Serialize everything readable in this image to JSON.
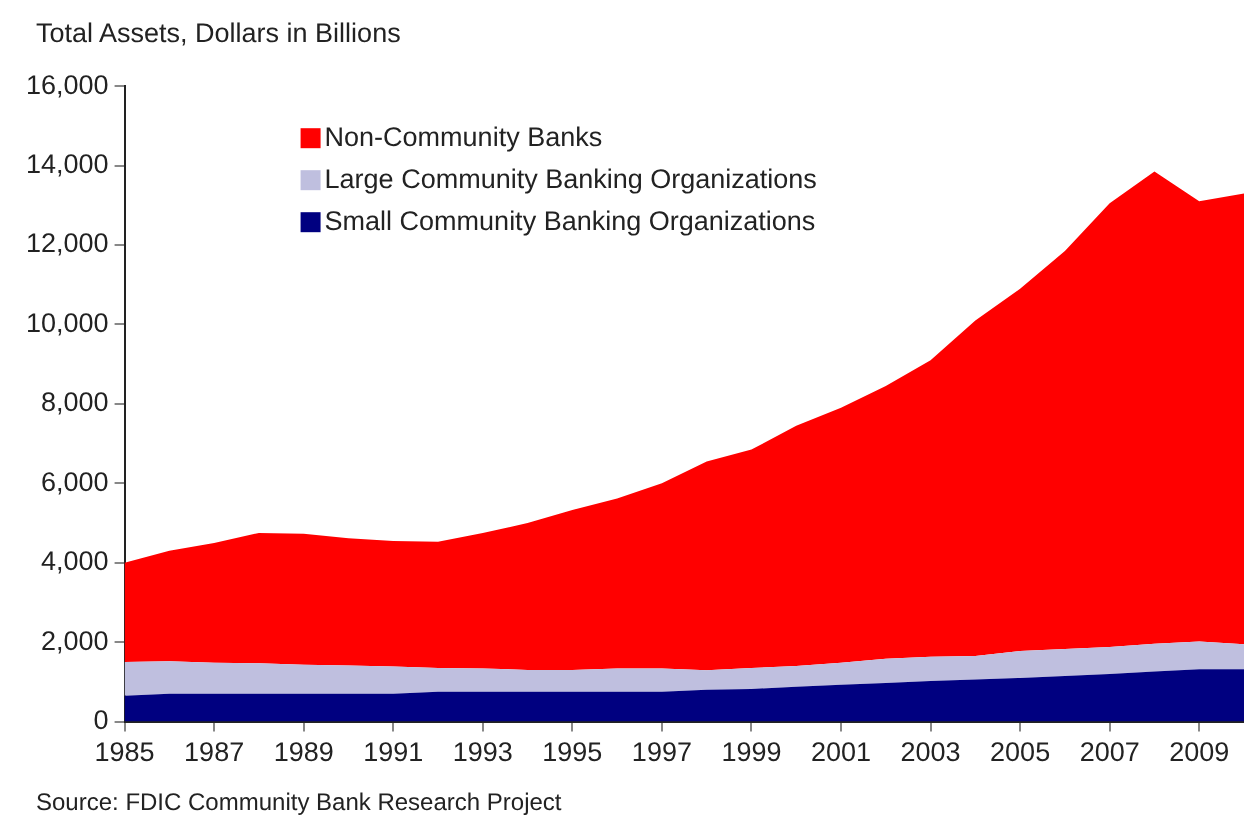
{
  "chart_data": {
    "type": "area",
    "title": "Total Assets, Dollars in Billions",
    "stacked": true,
    "legend": "top left",
    "x": [
      1985,
      1986,
      1987,
      1988,
      1989,
      1990,
      1991,
      1992,
      1993,
      1994,
      1995,
      1996,
      1997,
      1998,
      1999,
      2000,
      2001,
      2002,
      2003,
      2004,
      2005,
      2006,
      2007,
      2008,
      2009,
      2010
    ],
    "xlim": [
      1985,
      2010
    ],
    "xticks": [
      1985,
      1987,
      1989,
      1991,
      1993,
      1995,
      1997,
      1999,
      2001,
      2003,
      2005,
      2007,
      2009
    ],
    "ylim": [
      0,
      16000
    ],
    "yticks": [
      {
        "value": 0,
        "label": "0"
      },
      {
        "value": 2000,
        "label": "2,000"
      },
      {
        "value": 4000,
        "label": "4,000"
      },
      {
        "value": 6000,
        "label": "6,000"
      },
      {
        "value": 8000,
        "label": "8,000"
      },
      {
        "value": 10000,
        "label": "10,000"
      },
      {
        "value": 12000,
        "label": "12,000"
      },
      {
        "value": 14000,
        "label": "14,000"
      },
      {
        "value": 16000,
        "label": "16,000"
      }
    ],
    "series": [
      {
        "name": "Small Community Banking Organizations",
        "color": "#000080",
        "values": [
          650,
          700,
          700,
          700,
          700,
          700,
          700,
          750,
          750,
          750,
          750,
          750,
          750,
          800,
          820,
          880,
          930,
          970,
          1020,
          1060,
          1100,
          1150,
          1200,
          1260,
          1320,
          1320
        ]
      },
      {
        "name": "Large Community Banking Organizations",
        "color": "#bfbfdf",
        "values": [
          850,
          820,
          780,
          770,
          730,
          710,
          690,
          600,
          590,
          550,
          550,
          590,
          590,
          490,
          530,
          520,
          550,
          610,
          610,
          590,
          680,
          680,
          680,
          700,
          700,
          630
        ]
      },
      {
        "name": "Non-Community Banks",
        "color": "#ff0000",
        "values": [
          2500,
          2780,
          3020,
          3280,
          3300,
          3210,
          3160,
          3180,
          3410,
          3700,
          4030,
          4280,
          4660,
          5260,
          5500,
          6050,
          6420,
          6870,
          7470,
          8450,
          9120,
          10020,
          11170,
          11890,
          11080,
          11350
        ]
      }
    ],
    "annotations": [
      "Source: FDIC Community Bank Research Project"
    ]
  }
}
